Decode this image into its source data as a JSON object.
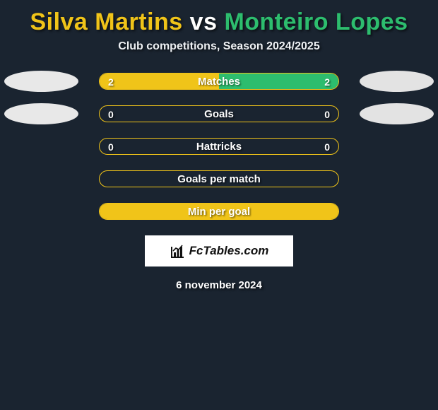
{
  "background_color": "#1a2430",
  "title": {
    "player_left": "Silva Martins",
    "vs": "vs",
    "player_right": "Monteiro Lopes",
    "left_color": "#f0c419",
    "vs_color": "#ffffff",
    "right_color": "#2dbd6e",
    "fontsize": 34
  },
  "subtitle": {
    "text": "Club competitions, Season 2024/2025",
    "color": "#eef1f4",
    "fontsize": 16
  },
  "players": {
    "left_avatar_color": "#e8e8e8",
    "right_avatar_color": "#e3e3e3"
  },
  "bars": {
    "border_color": "#f0c419",
    "label_color": "#ffffff",
    "value_color": "#ffffff",
    "fill_left_color": "#f0c419",
    "fill_right_color": "#2dbd6e",
    "fontsize": 15
  },
  "rows": [
    {
      "label": "Matches",
      "left": "2",
      "right": "2",
      "left_pct": 50,
      "right_pct": 50,
      "show_avatars": true
    },
    {
      "label": "Goals",
      "left": "0",
      "right": "0",
      "left_pct": 0,
      "right_pct": 0,
      "show_avatars": true
    },
    {
      "label": "Hattricks",
      "left": "0",
      "right": "0",
      "left_pct": 0,
      "right_pct": 0,
      "show_avatars": false
    },
    {
      "label": "Goals per match",
      "left": "",
      "right": "",
      "left_pct": 0,
      "right_pct": 0,
      "show_avatars": false
    },
    {
      "label": "Min per goal",
      "left": "",
      "right": "",
      "left_pct": 100,
      "right_pct": 0,
      "show_avatars": false
    }
  ],
  "brand": {
    "text": "FcTables.com",
    "bg_color": "#ffffff",
    "text_color": "#111111"
  },
  "footer": {
    "date": "6 november 2024",
    "color": "#ffffff",
    "fontsize": 15
  }
}
